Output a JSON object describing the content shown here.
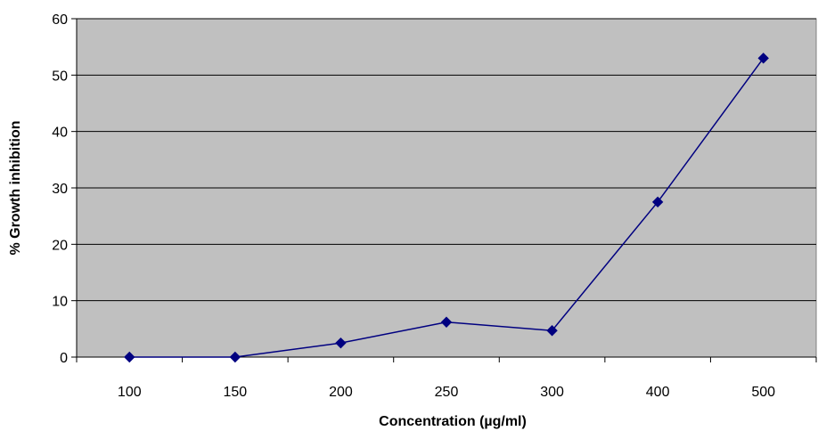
{
  "chart_data": {
    "type": "line",
    "title": "",
    "xlabel": "Concentration  (µg/ml)",
    "ylabel": "% Growth inhibition",
    "categories": [
      "100",
      "150",
      "200",
      "250",
      "300",
      "400",
      "500"
    ],
    "series": [
      {
        "values": [
          0,
          0,
          2.5,
          6.2,
          4.7,
          27.5,
          53
        ]
      }
    ],
    "ylim": [
      0,
      60
    ],
    "yticks": [
      0,
      10,
      20,
      30,
      40,
      50,
      60
    ],
    "grid": "horizontal",
    "legend": "none",
    "marker": "diamond",
    "colors": {
      "plot_background": "#c0c0c0",
      "series_line": "#000080",
      "gridline": "#000000"
    }
  }
}
